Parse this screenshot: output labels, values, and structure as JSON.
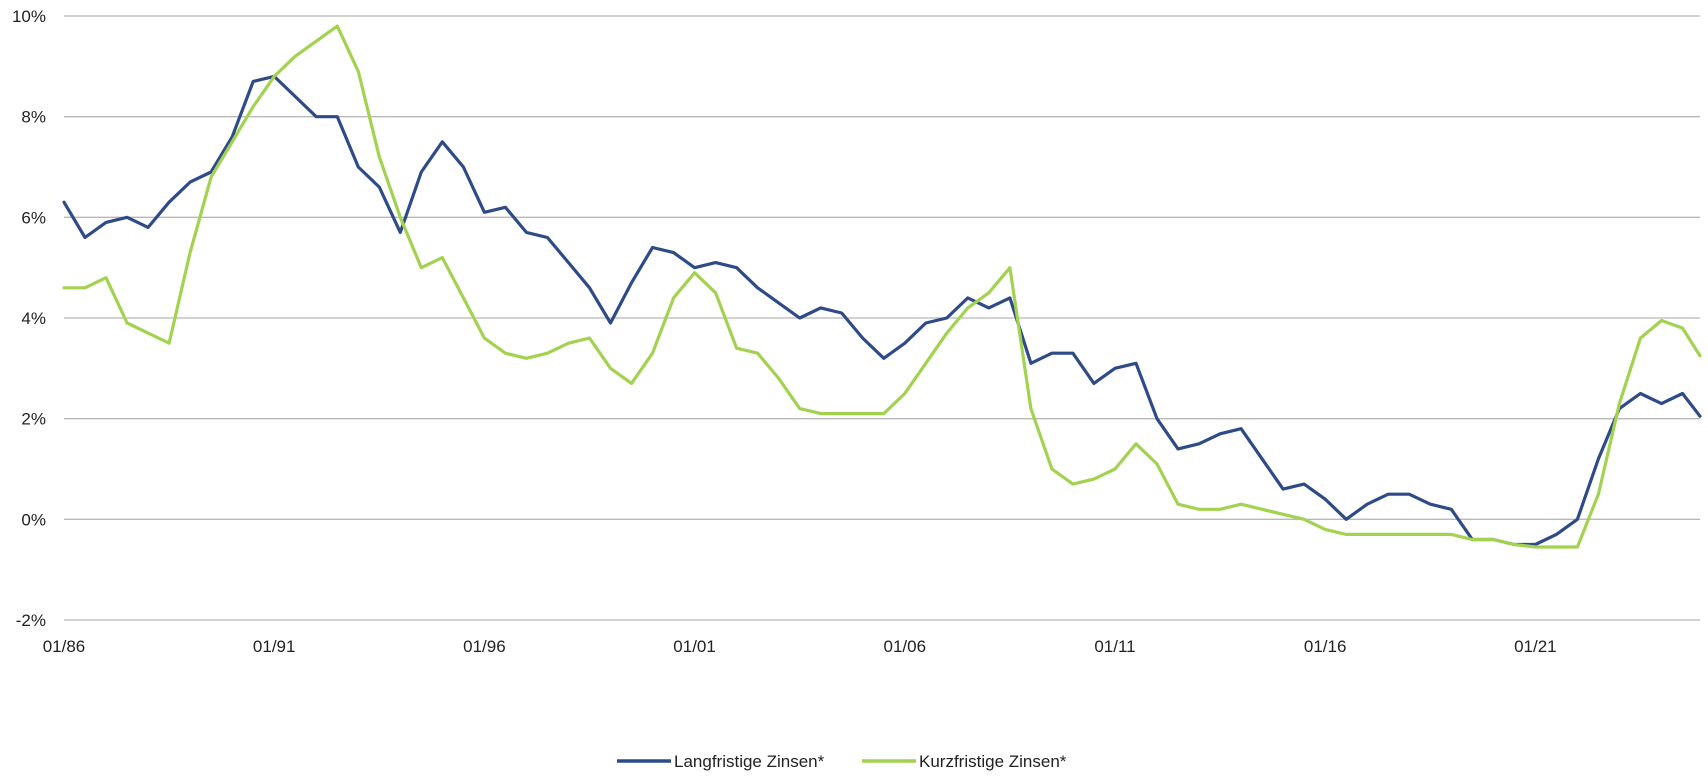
{
  "chart_data": {
    "type": "line",
    "title": "",
    "xlabel": "",
    "ylabel": "",
    "x_range": [
      "1986-01",
      "2024-12"
    ],
    "ylim": [
      -2,
      10
    ],
    "y_ticks": [
      -2,
      0,
      2,
      4,
      6,
      8,
      10
    ],
    "y_tick_labels": [
      "-2%",
      "0%",
      "2%",
      "4%",
      "6%",
      "8%",
      "10%"
    ],
    "x_ticks": [
      "1986-01",
      "1991-01",
      "1996-01",
      "2001-01",
      "2006-01",
      "2011-01",
      "2016-01",
      "2021-01"
    ],
    "x_tick_labels": [
      "01/86",
      "01/91",
      "01/96",
      "01/01",
      "01/06",
      "01/11",
      "01/16",
      "01/21"
    ],
    "grid": "horizontal",
    "legend_position": "bottom-center",
    "series": [
      {
        "name": "Langfristige Zinsen*",
        "color": "#2f4b87",
        "x": [
          "1986-01",
          "1986-07",
          "1987-01",
          "1987-07",
          "1988-01",
          "1988-07",
          "1989-01",
          "1989-07",
          "1990-01",
          "1990-07",
          "1991-01",
          "1991-07",
          "1992-01",
          "1992-07",
          "1993-01",
          "1993-07",
          "1994-01",
          "1994-07",
          "1995-01",
          "1995-07",
          "1996-01",
          "1996-07",
          "1997-01",
          "1997-07",
          "1998-01",
          "1998-07",
          "1999-01",
          "1999-07",
          "2000-01",
          "2000-07",
          "2001-01",
          "2001-07",
          "2002-01",
          "2002-07",
          "2003-01",
          "2003-07",
          "2004-01",
          "2004-07",
          "2005-01",
          "2005-07",
          "2006-01",
          "2006-07",
          "2007-01",
          "2007-07",
          "2008-01",
          "2008-07",
          "2009-01",
          "2009-07",
          "2010-01",
          "2010-07",
          "2011-01",
          "2011-07",
          "2012-01",
          "2012-07",
          "2013-01",
          "2013-07",
          "2014-01",
          "2014-07",
          "2015-01",
          "2015-07",
          "2016-01",
          "2016-07",
          "2017-01",
          "2017-07",
          "2018-01",
          "2018-07",
          "2019-01",
          "2019-07",
          "2020-01",
          "2020-07",
          "2021-01",
          "2021-07",
          "2022-01",
          "2022-07",
          "2023-01",
          "2023-07",
          "2024-01",
          "2024-07",
          "2024-12"
        ],
        "values": [
          6.3,
          5.6,
          5.9,
          6.0,
          5.8,
          6.3,
          6.7,
          6.9,
          7.6,
          8.7,
          8.8,
          8.4,
          8.0,
          8.0,
          7.0,
          6.6,
          5.7,
          6.9,
          7.5,
          7.0,
          6.1,
          6.2,
          5.7,
          5.6,
          5.1,
          4.6,
          3.9,
          4.7,
          5.4,
          5.3,
          5.0,
          5.1,
          5.0,
          4.6,
          4.3,
          4.0,
          4.2,
          4.1,
          3.6,
          3.2,
          3.5,
          3.9,
          4.0,
          4.4,
          4.2,
          4.4,
          3.1,
          3.3,
          3.3,
          2.7,
          3.0,
          3.1,
          2.0,
          1.4,
          1.5,
          1.7,
          1.8,
          1.2,
          0.6,
          0.7,
          0.4,
          0.0,
          0.3,
          0.5,
          0.5,
          0.3,
          0.2,
          -0.4,
          -0.4,
          -0.5,
          -0.5,
          -0.3,
          0.0,
          1.2,
          2.2,
          2.5,
          2.3,
          2.5,
          2.05
        ]
      },
      {
        "name": "Kurzfristige Zinsen*",
        "color": "#a2d24f",
        "x": [
          "1986-01",
          "1986-07",
          "1987-01",
          "1987-07",
          "1988-01",
          "1988-07",
          "1989-01",
          "1989-07",
          "1990-01",
          "1990-07",
          "1991-01",
          "1991-07",
          "1992-01",
          "1992-07",
          "1993-01",
          "1993-07",
          "1994-01",
          "1994-07",
          "1995-01",
          "1995-07",
          "1996-01",
          "1996-07",
          "1997-01",
          "1997-07",
          "1998-01",
          "1998-07",
          "1999-01",
          "1999-07",
          "2000-01",
          "2000-07",
          "2001-01",
          "2001-07",
          "2002-01",
          "2002-07",
          "2003-01",
          "2003-07",
          "2004-01",
          "2004-07",
          "2005-01",
          "2005-07",
          "2006-01",
          "2006-07",
          "2007-01",
          "2007-07",
          "2008-01",
          "2008-07",
          "2009-01",
          "2009-07",
          "2010-01",
          "2010-07",
          "2011-01",
          "2011-07",
          "2012-01",
          "2012-07",
          "2013-01",
          "2013-07",
          "2014-01",
          "2014-07",
          "2015-01",
          "2015-07",
          "2016-01",
          "2016-07",
          "2017-01",
          "2017-07",
          "2018-01",
          "2018-07",
          "2019-01",
          "2019-07",
          "2020-01",
          "2020-07",
          "2021-01",
          "2021-07",
          "2022-01",
          "2022-07",
          "2023-01",
          "2023-07",
          "2024-01",
          "2024-07",
          "2024-12"
        ],
        "values": [
          4.6,
          4.6,
          4.8,
          3.9,
          3.7,
          3.5,
          5.3,
          6.8,
          7.5,
          8.2,
          8.8,
          9.2,
          9.5,
          9.8,
          8.9,
          7.2,
          6.0,
          5.0,
          5.2,
          4.4,
          3.6,
          3.3,
          3.2,
          3.3,
          3.5,
          3.6,
          3.0,
          2.7,
          3.3,
          4.4,
          4.9,
          4.5,
          3.4,
          3.3,
          2.8,
          2.2,
          2.1,
          2.1,
          2.1,
          2.1,
          2.5,
          3.1,
          3.7,
          4.2,
          4.5,
          5.0,
          2.2,
          1.0,
          0.7,
          0.8,
          1.0,
          1.5,
          1.1,
          0.3,
          0.2,
          0.2,
          0.3,
          0.2,
          0.1,
          0.0,
          -0.2,
          -0.3,
          -0.3,
          -0.3,
          -0.3,
          -0.3,
          -0.3,
          -0.4,
          -0.4,
          -0.5,
          -0.55,
          -0.55,
          -0.55,
          0.5,
          2.3,
          3.6,
          3.95,
          3.8,
          3.25
        ]
      }
    ]
  }
}
